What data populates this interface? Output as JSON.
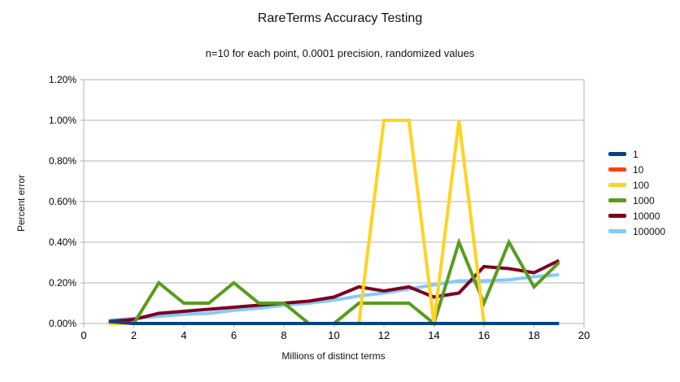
{
  "chart_data": {
    "type": "line",
    "title": "RareTerms Accuracy Testing",
    "subtitle": "n=10 for each point, 0.0001 precision, randomized values",
    "xlabel": "Millions of distinct terms",
    "ylabel": "Percent error",
    "xlim": [
      0,
      20
    ],
    "ylim_percent": [
      0,
      1.2
    ],
    "grid": "horizontal",
    "legend_position": "right",
    "colors": {
      "grid": "#b3b3b3",
      "axis": "#b3b3b3",
      "text": "#000000",
      "background": "#ffffff"
    },
    "x_ticks": [
      {
        "label": "0",
        "value": 0
      },
      {
        "label": "2",
        "value": 2
      },
      {
        "label": "4",
        "value": 4
      },
      {
        "label": "6",
        "value": 6
      },
      {
        "label": "8",
        "value": 8
      },
      {
        "label": "10",
        "value": 10
      },
      {
        "label": "12",
        "value": 12
      },
      {
        "label": "14",
        "value": 14
      },
      {
        "label": "16",
        "value": 16
      },
      {
        "label": "18",
        "value": 18
      },
      {
        "label": "20",
        "value": 20
      }
    ],
    "y_ticks": [
      {
        "label": "0.00%",
        "value": 0.0
      },
      {
        "label": "0.20%",
        "value": 0.2
      },
      {
        "label": "0.40%",
        "value": 0.4
      },
      {
        "label": "0.60%",
        "value": 0.6
      },
      {
        "label": "0.80%",
        "value": 0.8
      },
      {
        "label": "1.00%",
        "value": 1.0
      },
      {
        "label": "1.20%",
        "value": 1.2
      }
    ],
    "x": [
      1,
      2,
      3,
      4,
      5,
      6,
      7,
      8,
      9,
      10,
      11,
      12,
      13,
      14,
      15,
      16,
      17,
      18,
      19
    ],
    "series": [
      {
        "name": "1",
        "color": "#004586",
        "values": [
          0.01,
          0.0,
          0.0,
          0.0,
          0.0,
          0.0,
          0.0,
          0.0,
          0.0,
          0.0,
          0.0,
          0.0,
          0.0,
          0.0,
          0.0,
          0.0,
          0.0,
          0.0,
          0.0
        ]
      },
      {
        "name": "10",
        "color": "#ff420e",
        "values": [
          0.01,
          0.0,
          0.0,
          0.0,
          0.0,
          0.0,
          0.0,
          0.0,
          0.0,
          0.0,
          0.0,
          0.0,
          0.0,
          0.0,
          0.0,
          0.0,
          0.0,
          0.0,
          0.0
        ]
      },
      {
        "name": "100",
        "color": "#ffd320",
        "values": [
          0.0,
          0.0,
          0.0,
          0.0,
          0.0,
          0.0,
          0.0,
          0.0,
          0.0,
          0.0,
          0.0,
          1.0,
          1.0,
          0.0,
          1.0,
          0.0,
          0.0,
          0.0,
          0.0
        ]
      },
      {
        "name": "1000",
        "color": "#579d1c",
        "values": [
          0.0,
          0.0,
          0.2,
          0.1,
          0.1,
          0.2,
          0.1,
          0.1,
          0.0,
          0.0,
          0.1,
          0.1,
          0.1,
          0.0,
          0.4,
          0.1,
          0.4,
          0.18,
          0.3
        ]
      },
      {
        "name": "10000",
        "color": "#7e0021",
        "values": [
          0.01,
          0.02,
          0.05,
          0.06,
          0.07,
          0.08,
          0.09,
          0.1,
          0.11,
          0.13,
          0.18,
          0.16,
          0.18,
          0.13,
          0.15,
          0.28,
          0.27,
          0.25,
          0.31
        ]
      },
      {
        "name": "100000",
        "color": "#83caff",
        "values": [
          0.015,
          0.025,
          0.035,
          0.045,
          0.05,
          0.065,
          0.075,
          0.09,
          0.1,
          0.115,
          0.135,
          0.15,
          0.17,
          0.19,
          0.21,
          0.21,
          0.215,
          0.23,
          0.24
        ]
      }
    ]
  }
}
